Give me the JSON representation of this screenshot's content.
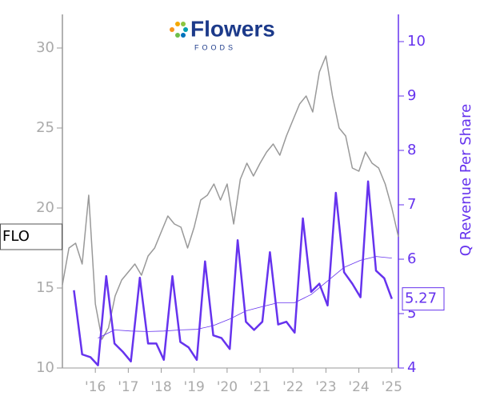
{
  "logo": {
    "name": "Flowers",
    "sub": "FOODS"
  },
  "chart_data": {
    "type": "line",
    "ticker": "FLO",
    "y2label": "Q Revenue Per Share",
    "xlim": [
      2015.0,
      2025.2
    ],
    "xticks": [
      {
        "value": 2016,
        "label": "'16"
      },
      {
        "value": 2017,
        "label": "'17"
      },
      {
        "value": 2018,
        "label": "'18"
      },
      {
        "value": 2019,
        "label": "'19"
      },
      {
        "value": 2020,
        "label": "'20"
      },
      {
        "value": 2021,
        "label": "'21"
      },
      {
        "value": 2022,
        "label": "'22"
      },
      {
        "value": 2023,
        "label": "'23"
      },
      {
        "value": 2024,
        "label": "'24"
      },
      {
        "value": 2025,
        "label": "'25"
      }
    ],
    "ylim": [
      10,
      32.1
    ],
    "yticks": [
      10,
      15,
      20,
      25,
      30
    ],
    "y2lim": [
      4,
      10.5
    ],
    "y2ticks": [
      4,
      5,
      6,
      7,
      8,
      9,
      10
    ],
    "series": [
      {
        "color": "#999999",
        "width": 1.5,
        "x": [
          2015.0,
          2015.2,
          2015.4,
          2015.6,
          2015.8,
          2016.0,
          2016.2,
          2016.4,
          2016.6,
          2016.8,
          2017.0,
          2017.2,
          2017.4,
          2017.6,
          2017.8,
          2018.0,
          2018.2,
          2018.4,
          2018.6,
          2018.8,
          2019.0,
          2019.2,
          2019.4,
          2019.6,
          2019.8,
          2020.0,
          2020.2,
          2020.4,
          2020.6,
          2020.8,
          2021.0,
          2021.2,
          2021.4,
          2021.6,
          2021.8,
          2022.0,
          2022.2,
          2022.4,
          2022.6,
          2022.8,
          2023.0,
          2023.2,
          2023.4,
          2023.6,
          2023.8,
          2024.0,
          2024.2,
          2024.4,
          2024.6,
          2024.8,
          2025.0,
          2025.2
        ],
        "values": [
          15.2,
          17.5,
          17.8,
          16.5,
          20.8,
          14.0,
          11.8,
          12.5,
          14.5,
          15.5,
          16.0,
          16.5,
          15.8,
          17.0,
          17.5,
          18.5,
          19.5,
          19.0,
          18.8,
          17.5,
          18.8,
          20.5,
          20.8,
          21.5,
          20.5,
          21.5,
          19.0,
          21.8,
          22.8,
          22.0,
          22.8,
          23.5,
          24.0,
          23.3,
          24.5,
          25.5,
          26.5,
          27.0,
          26.0,
          28.5,
          29.5,
          27.0,
          25.0,
          24.5,
          22.5,
          22.3,
          23.5,
          22.8,
          22.5,
          21.5,
          20.0,
          18.2
        ]
      },
      {
        "color": "#6633ee",
        "width": 2.5,
        "axis": "y2",
        "x": [
          2015.35,
          2015.6,
          2015.85,
          2016.08,
          2016.33,
          2016.58,
          2016.83,
          2017.08,
          2017.35,
          2017.6,
          2017.85,
          2018.08,
          2018.34,
          2018.58,
          2018.83,
          2019.08,
          2019.33,
          2019.58,
          2019.83,
          2020.08,
          2020.32,
          2020.57,
          2020.82,
          2021.07,
          2021.3,
          2021.55,
          2021.8,
          2022.05,
          2022.3,
          2022.55,
          2022.8,
          2023.05,
          2023.3,
          2023.55,
          2023.8,
          2024.05,
          2024.28,
          2024.52,
          2024.77,
          2025.0
        ],
        "values": [
          5.43,
          4.25,
          4.2,
          4.05,
          5.69,
          4.45,
          4.3,
          4.12,
          5.66,
          4.45,
          4.45,
          4.15,
          5.69,
          4.48,
          4.38,
          4.15,
          5.96,
          4.6,
          4.55,
          4.35,
          6.35,
          4.85,
          4.7,
          4.85,
          6.13,
          4.8,
          4.85,
          4.65,
          6.75,
          5.4,
          5.55,
          5.15,
          7.22,
          5.76,
          5.55,
          5.3,
          7.43,
          5.79,
          5.65,
          5.27
        ]
      },
      {
        "color": "#6633ee",
        "width": 0.8,
        "axis": "y2",
        "x": [
          2016.08,
          2016.58,
          2017.08,
          2017.6,
          2018.08,
          2018.58,
          2019.08,
          2019.58,
          2020.08,
          2020.57,
          2021.07,
          2021.55,
          2022.05,
          2022.55,
          2023.05,
          2023.55,
          2024.05,
          2024.52,
          2025.0
        ],
        "values": [
          4.55,
          4.7,
          4.68,
          4.67,
          4.68,
          4.7,
          4.71,
          4.78,
          4.9,
          5.05,
          5.13,
          5.2,
          5.2,
          5.35,
          5.6,
          5.85,
          5.98,
          6.05,
          6.02
        ]
      }
    ]
  }
}
